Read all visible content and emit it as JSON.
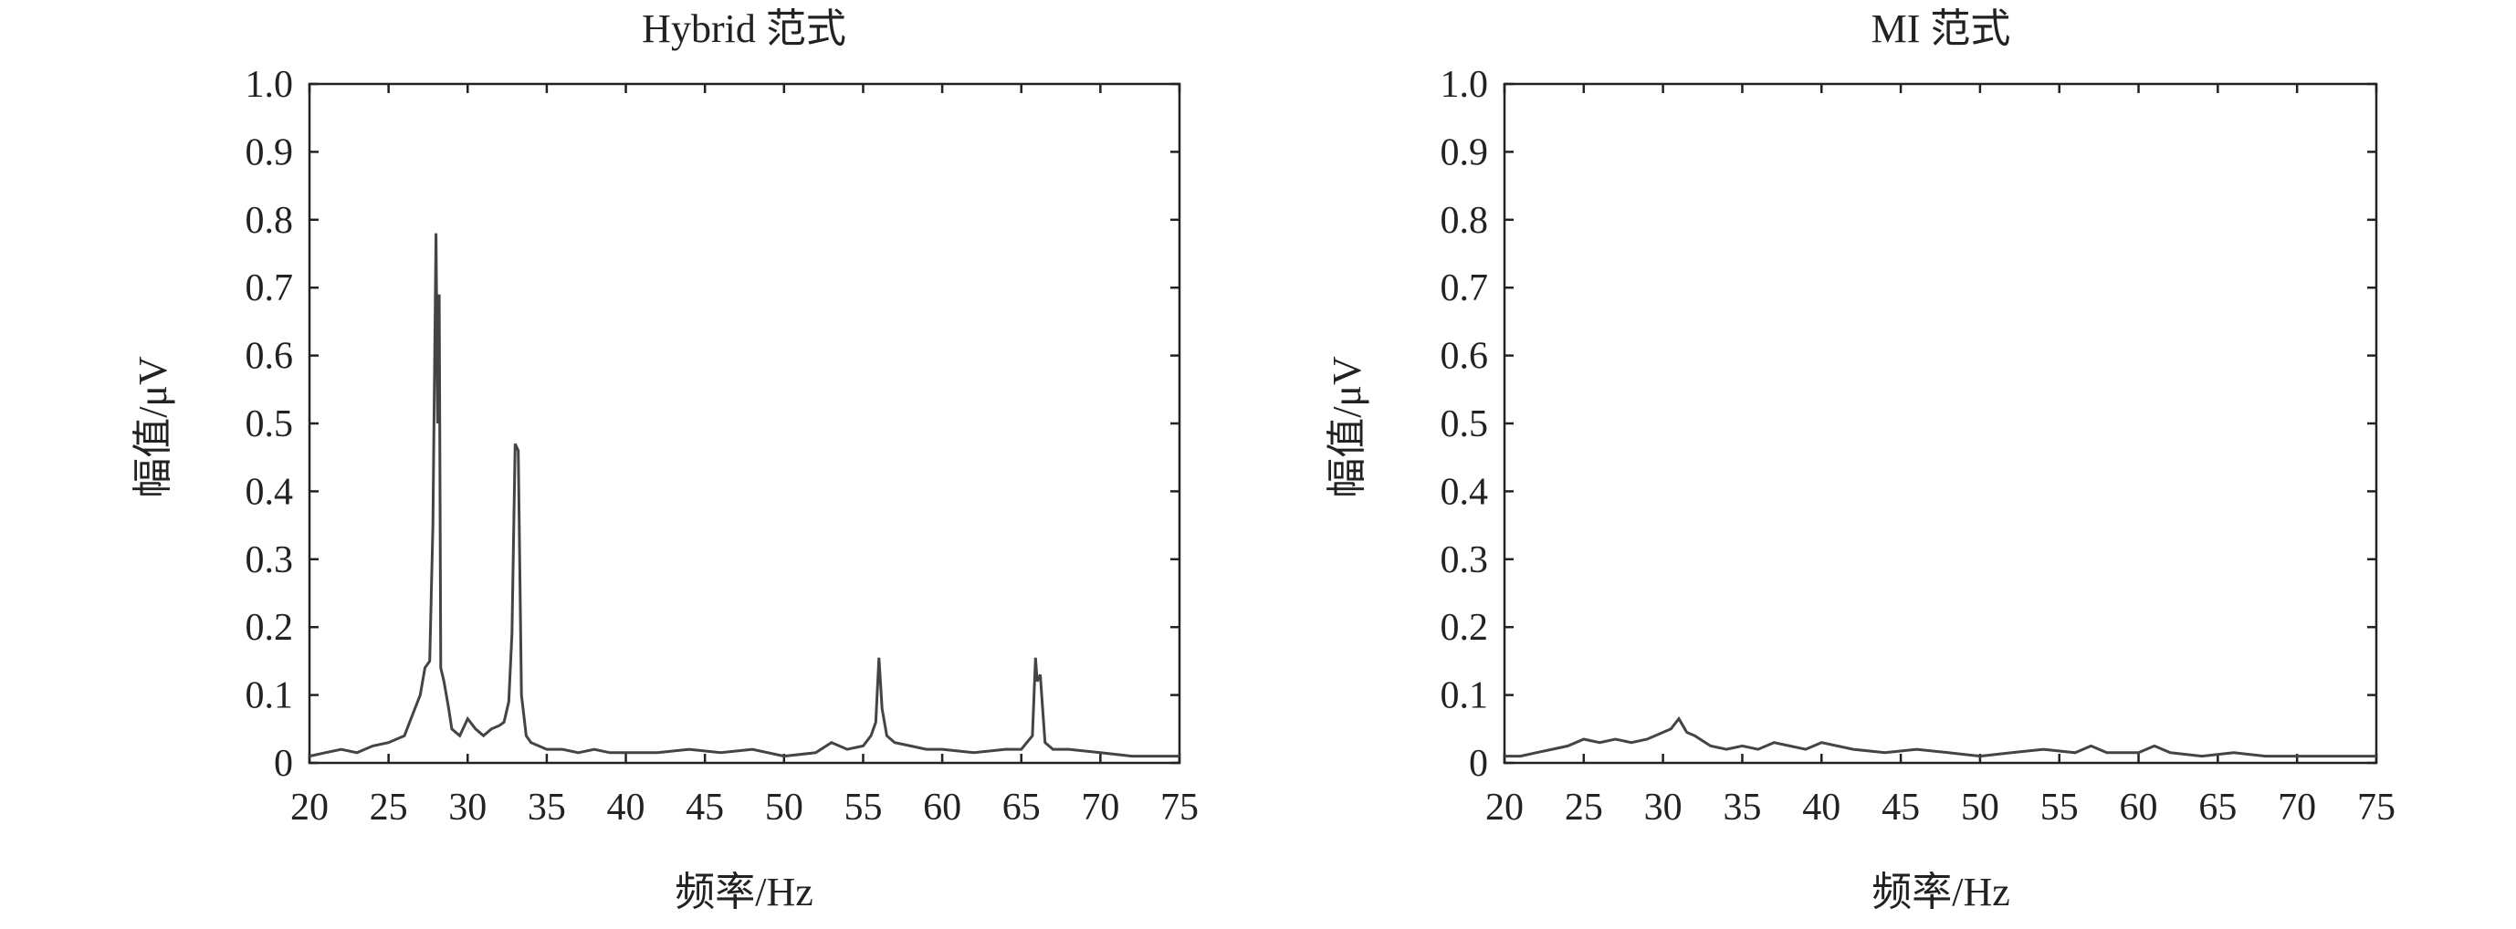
{
  "chart_data": [
    {
      "type": "line",
      "title": "Hybrid 范式",
      "xlabel": "频率/Hz",
      "ylabel": "幅值/μV",
      "xlim": [
        20,
        75
      ],
      "ylim": [
        0,
        1.0
      ],
      "xticks": [
        20,
        25,
        30,
        35,
        40,
        45,
        50,
        55,
        60,
        65,
        70,
        75
      ],
      "xtick_labels": [
        "20",
        "25",
        "30",
        "35",
        "40",
        "45",
        "50",
        "55",
        "60",
        "65",
        "70",
        "75"
      ],
      "yticks": [
        0,
        0.1,
        0.2,
        0.3,
        0.4,
        0.5,
        0.6,
        0.7,
        0.8,
        0.9,
        1.0
      ],
      "ytick_labels": [
        "0",
        "0.1",
        "0.2",
        "0.3",
        "0.4",
        "0.5",
        "0.6",
        "0.7",
        "0.8",
        "0.9",
        "1.0"
      ],
      "grid": false,
      "line_color": "#444444",
      "series": [
        {
          "x": [
            20.0,
            21.0,
            22.0,
            23.0,
            24.0,
            25.0,
            26.0,
            26.5,
            27.0,
            27.3,
            27.6,
            27.8,
            28.0,
            28.1,
            28.2,
            28.3,
            28.5,
            28.8,
            29.0,
            29.5,
            30.0,
            30.5,
            31.0,
            31.5,
            32.0,
            32.3,
            32.6,
            32.8,
            33.0,
            33.2,
            33.4,
            33.7,
            34.0,
            34.5,
            35.0,
            36.0,
            37.0,
            38.0,
            39.0,
            40.0,
            42.0,
            44.0,
            46.0,
            48.0,
            50.0,
            52.0,
            53.0,
            54.0,
            55.0,
            55.5,
            55.8,
            56.0,
            56.2,
            56.5,
            57.0,
            58.0,
            59.0,
            60.0,
            62.0,
            64.0,
            65.0,
            65.7,
            65.9,
            66.0,
            66.2,
            66.5,
            67.0,
            68.0,
            70.0,
            72.0,
            74.0,
            75.0
          ],
          "y": [
            0.01,
            0.015,
            0.02,
            0.015,
            0.025,
            0.03,
            0.04,
            0.07,
            0.1,
            0.14,
            0.15,
            0.35,
            0.78,
            0.5,
            0.69,
            0.14,
            0.12,
            0.08,
            0.05,
            0.04,
            0.065,
            0.05,
            0.04,
            0.05,
            0.055,
            0.06,
            0.09,
            0.19,
            0.47,
            0.46,
            0.1,
            0.04,
            0.03,
            0.025,
            0.02,
            0.02,
            0.015,
            0.02,
            0.015,
            0.015,
            0.015,
            0.02,
            0.015,
            0.02,
            0.01,
            0.015,
            0.03,
            0.02,
            0.025,
            0.04,
            0.06,
            0.155,
            0.08,
            0.04,
            0.03,
            0.025,
            0.02,
            0.02,
            0.015,
            0.02,
            0.02,
            0.04,
            0.155,
            0.12,
            0.13,
            0.03,
            0.02,
            0.02,
            0.015,
            0.01,
            0.01,
            0.01
          ]
        }
      ]
    },
    {
      "type": "line",
      "title": "MI 范式",
      "xlabel": "频率/Hz",
      "ylabel": "幅值/μV",
      "xlim": [
        20,
        75
      ],
      "ylim": [
        0,
        1.0
      ],
      "xticks": [
        20,
        25,
        30,
        35,
        40,
        45,
        50,
        55,
        60,
        65,
        70,
        75
      ],
      "xtick_labels": [
        "20",
        "25",
        "30",
        "35",
        "40",
        "45",
        "50",
        "55",
        "60",
        "65",
        "70",
        "75"
      ],
      "yticks": [
        0,
        0.1,
        0.2,
        0.3,
        0.4,
        0.5,
        0.6,
        0.7,
        0.8,
        0.9,
        1.0
      ],
      "ytick_labels": [
        "0",
        "0.1",
        "0.2",
        "0.3",
        "0.4",
        "0.5",
        "0.6",
        "0.7",
        "0.8",
        "0.9",
        "1.0"
      ],
      "grid": false,
      "line_color": "#444444",
      "series": [
        {
          "x": [
            20.0,
            21.0,
            22.0,
            23.0,
            24.0,
            25.0,
            26.0,
            27.0,
            28.0,
            29.0,
            30.0,
            30.5,
            31.0,
            31.5,
            32.0,
            33.0,
            34.0,
            35.0,
            36.0,
            37.0,
            38.0,
            39.0,
            40.0,
            41.0,
            42.0,
            44.0,
            46.0,
            48.0,
            50.0,
            52.0,
            54.0,
            56.0,
            57.0,
            58.0,
            60.0,
            61.0,
            62.0,
            64.0,
            66.0,
            68.0,
            70.0,
            72.0,
            74.0,
            75.0
          ],
          "y": [
            0.01,
            0.01,
            0.015,
            0.02,
            0.025,
            0.035,
            0.03,
            0.035,
            0.03,
            0.035,
            0.045,
            0.05,
            0.065,
            0.045,
            0.04,
            0.025,
            0.02,
            0.025,
            0.02,
            0.03,
            0.025,
            0.02,
            0.03,
            0.025,
            0.02,
            0.015,
            0.02,
            0.015,
            0.01,
            0.015,
            0.02,
            0.015,
            0.025,
            0.015,
            0.015,
            0.025,
            0.015,
            0.01,
            0.015,
            0.01,
            0.01,
            0.01,
            0.01,
            0.01
          ]
        }
      ]
    }
  ]
}
